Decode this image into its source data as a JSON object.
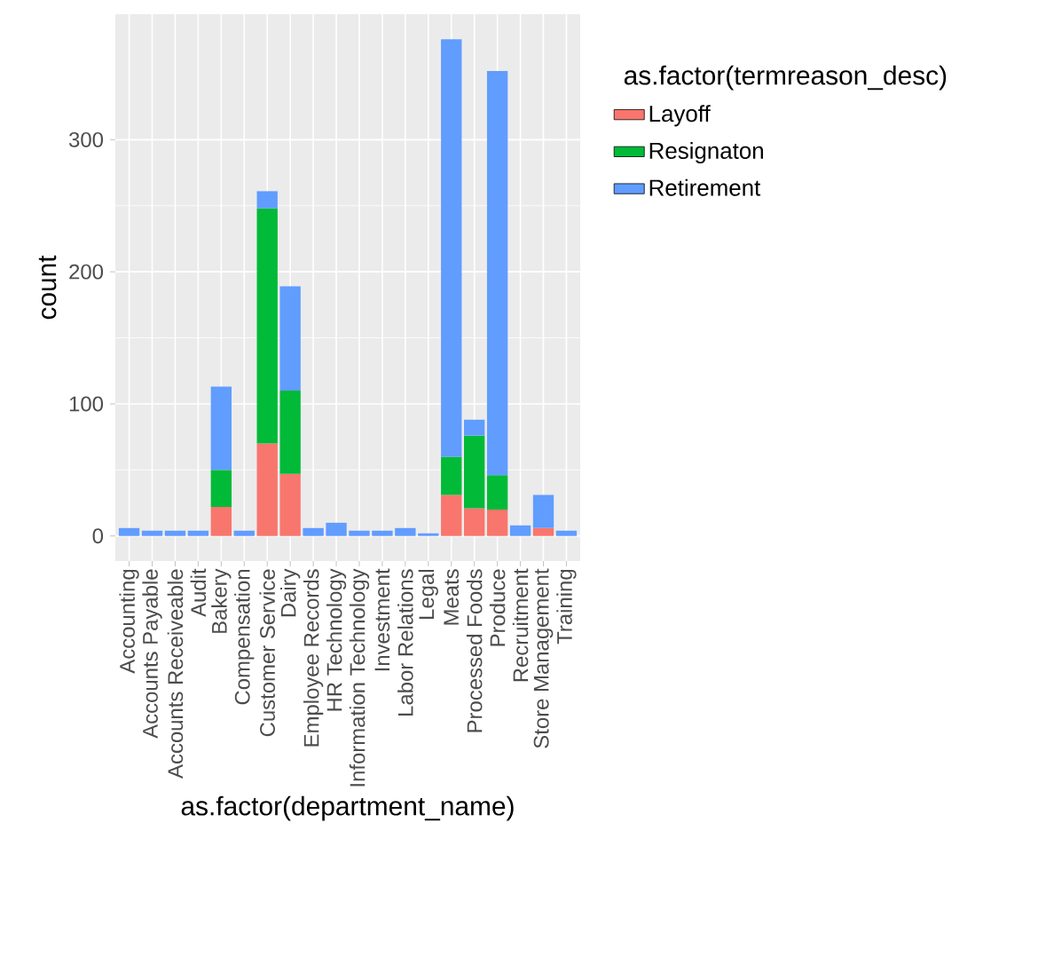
{
  "chart_data": {
    "type": "bar",
    "stacked": true,
    "xlabel": "as.factor(department_name)",
    "ylabel": "count",
    "legend_title": "as.factor(termreason_desc)",
    "categories": [
      "Accounting",
      "Accounts Payable",
      "Accounts Receiveable",
      "Audit",
      "Bakery",
      "Compensation",
      "Customer Service",
      "Dairy",
      "Employee Records",
      "HR Technology",
      "Information Technology",
      "Investment",
      "Labor Relations",
      "Legal",
      "Meats",
      "Processed Foods",
      "Produce",
      "Recruitment",
      "Store Management",
      "Training"
    ],
    "series": [
      {
        "name": "Layoff",
        "color": "#f8766d",
        "values": [
          null,
          null,
          null,
          null,
          22,
          null,
          70,
          47,
          null,
          null,
          null,
          null,
          null,
          null,
          31,
          21,
          20,
          null,
          6,
          null
        ]
      },
      {
        "name": "Resignaton",
        "color": "#00ba38",
        "values": [
          null,
          null,
          null,
          null,
          28,
          null,
          178,
          63,
          null,
          null,
          null,
          null,
          null,
          null,
          29,
          55,
          26,
          null,
          null,
          null
        ]
      },
      {
        "name": "Retirement",
        "color": "#619cff",
        "values": [
          6,
          4,
          4,
          4,
          63,
          4,
          13,
          79,
          6,
          10,
          4,
          4,
          6,
          2,
          316,
          12,
          306,
          8,
          25,
          4
        ]
      }
    ],
    "ylim": [
      -19,
      395
    ],
    "yticks": [
      0,
      100,
      200,
      300
    ],
    "grid": true,
    "legend": "right"
  }
}
